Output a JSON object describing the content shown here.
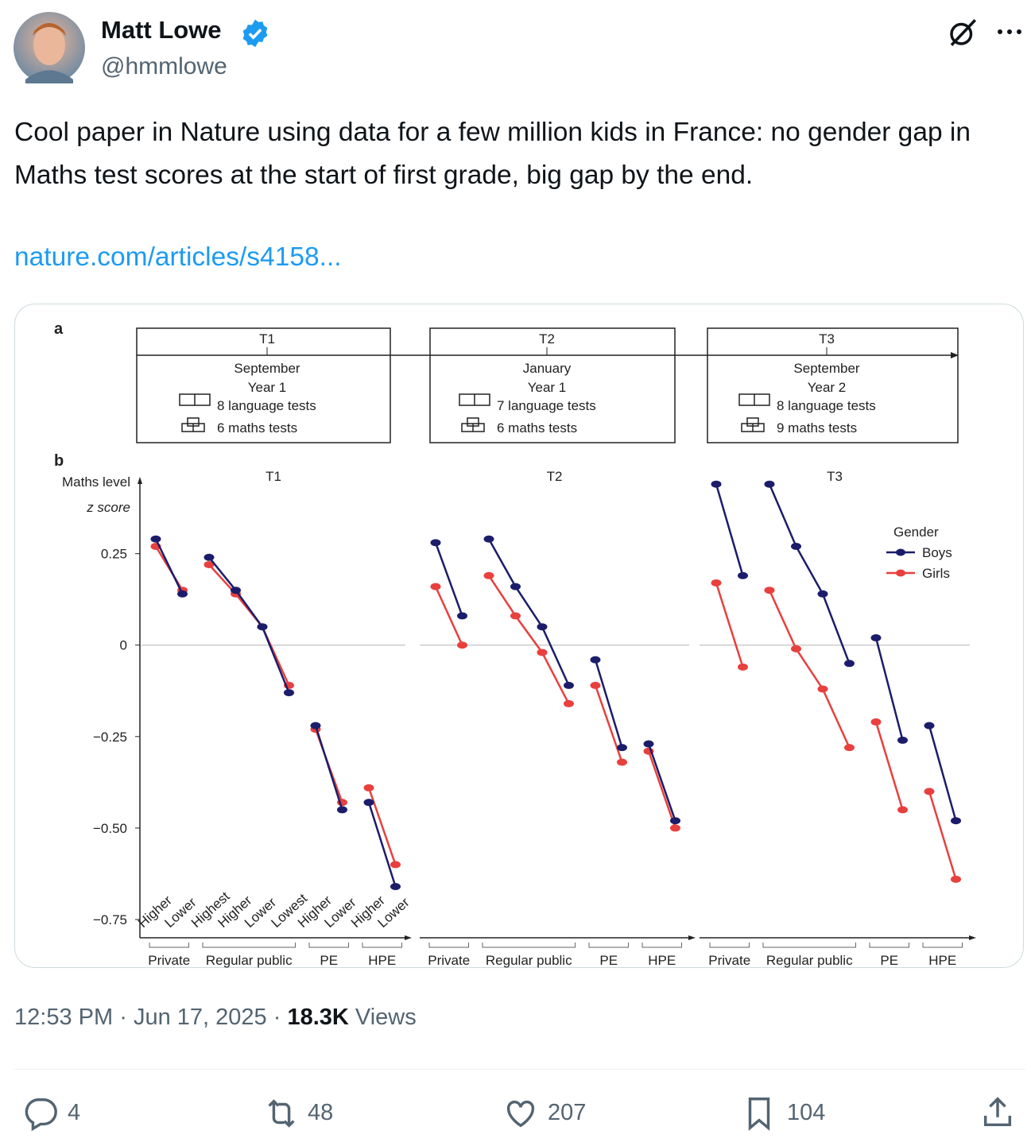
{
  "tweet": {
    "name": "Matt Lowe",
    "handle": "@hmmlowe",
    "text": "Cool paper in Nature using data for a few million kids in France: no gender gap in Maths test scores at the start of first grade, big gap by the end.",
    "link": "nature.com/articles/s4158...",
    "time": "12:53 PM",
    "separator": "·",
    "date": "Jun 17, 2025",
    "views": "18.3K",
    "views_label": "Views",
    "replies": "4",
    "retweets": "48",
    "likes": "207",
    "bookmarks": "104"
  },
  "figure": {
    "part_a_label": "a",
    "part_b_label": "b",
    "timeline": [
      {
        "title": "T1",
        "month": "September",
        "year": "Year 1",
        "language": "8 language tests",
        "maths": "6 maths tests"
      },
      {
        "title": "T2",
        "month": "January",
        "year": "Year 1",
        "language": "7 language tests",
        "maths": "6 maths tests"
      },
      {
        "title": "T3",
        "month": "September",
        "year": "Year 2",
        "language": "8 language tests",
        "maths": "9 maths tests"
      }
    ],
    "chart": {
      "type": "line",
      "y_label": "Maths level",
      "y_sublabel": "z score",
      "panels": [
        "T1",
        "T2",
        "T3"
      ],
      "groups": [
        {
          "name": "Private",
          "categories": [
            "Higher",
            "Lower"
          ]
        },
        {
          "name": "Regular public",
          "categories": [
            "Highest",
            "Higher",
            "Lower",
            "Lowest"
          ]
        },
        {
          "name": "PE",
          "categories": [
            "Higher",
            "Lower"
          ]
        },
        {
          "name": "HPE",
          "categories": [
            "Higher",
            "Lower"
          ]
        }
      ],
      "ylim": [
        -0.8,
        0.46
      ],
      "yticks": [
        {
          "value": 0.25,
          "label": "0.25"
        },
        0,
        {
          "value": -0.25,
          "label": "−0.25"
        },
        {
          "value": -0.5,
          "label": "−0.50"
        },
        {
          "value": -0.75,
          "label": "−0.75"
        }
      ],
      "zero_line": true,
      "legend_title": "Gender",
      "legend": "upper right",
      "series": [
        {
          "name": "Boys",
          "color": "#1b1d6b",
          "values": [
            [
              0.29,
              0.14,
              0.24,
              0.15,
              0.05,
              -0.13,
              -0.22,
              -0.45,
              -0.43,
              -0.66
            ],
            [
              0.28,
              0.08,
              0.29,
              0.16,
              0.05,
              -0.11,
              -0.04,
              -0.28,
              -0.27,
              -0.48
            ],
            [
              0.44,
              0.19,
              0.44,
              0.27,
              0.14,
              -0.05,
              0.02,
              -0.26,
              -0.22,
              -0.48
            ]
          ]
        },
        {
          "name": "Girls",
          "color": "#e8403e",
          "values": [
            [
              0.27,
              0.15,
              0.22,
              0.14,
              0.05,
              -0.11,
              -0.23,
              -0.43,
              -0.39,
              -0.6
            ],
            [
              0.16,
              0,
              0.19,
              0.08,
              -0.02,
              -0.16,
              -0.11,
              -0.32,
              -0.29,
              -0.5
            ],
            [
              0.17,
              -0.06,
              0.15,
              -0.01,
              -0.12,
              -0.28,
              -0.21,
              -0.45,
              -0.4,
              -0.64
            ]
          ]
        }
      ]
    }
  }
}
